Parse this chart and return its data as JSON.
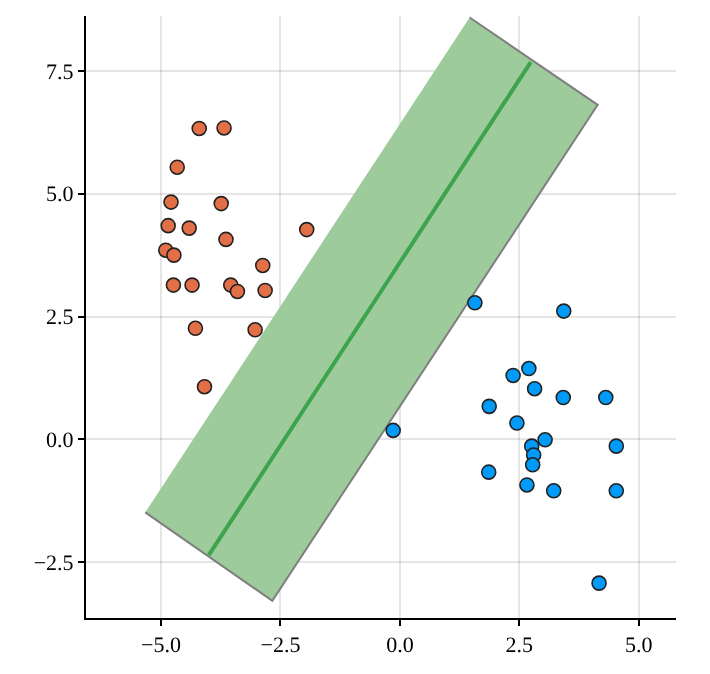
{
  "chart_data": {
    "type": "scatter",
    "marker": "circle",
    "grid": true,
    "xlim": [
      -6.57,
      5.78
    ],
    "ylim": [
      -3.64,
      8.62
    ],
    "xticks": [
      {
        "value": -5,
        "label": "−5.0"
      },
      {
        "value": -2.5,
        "label": "−2.5"
      },
      {
        "value": 0,
        "label": "0.0"
      },
      {
        "value": 2.5,
        "label": "2.5"
      },
      {
        "value": 5,
        "label": "5.0"
      }
    ],
    "yticks": [
      {
        "value": -2.5,
        "label": "−2.5"
      },
      {
        "value": 0,
        "label": "0.0"
      },
      {
        "value": 2.5,
        "label": "2.5"
      },
      {
        "value": 5,
        "label": "5.0"
      },
      {
        "value": 7.5,
        "label": "7.5"
      }
    ],
    "series": [
      {
        "type": "area",
        "marker": "none",
        "color": "#9ecb9c",
        "x": [
          1.46,
          4.14,
          -2.67,
          -5.33
        ],
        "values": [
          8.59,
          6.81,
          -3.29,
          -1.49
        ]
      },
      {
        "type": "line",
        "marker": "none",
        "color": "#3da44d",
        "x": [
          -4.0,
          0.0,
          2.74
        ],
        "values": [
          -2.36,
          3.6,
          7.68
        ]
      },
      {
        "color": "#e26f46",
        "x": [
          -4.2,
          -3.68,
          -4.66,
          -4.79,
          -3.74,
          -4.85,
          -4.41,
          -3.64,
          -1.95,
          -4.9,
          -4.73,
          -2.87,
          -4.74,
          -4.35,
          -3.54,
          -3.4,
          -2.82,
          -4.28,
          -3.03,
          -4.09
        ],
        "values": [
          6.33,
          6.34,
          5.54,
          4.83,
          4.8,
          4.35,
          4.3,
          4.07,
          4.27,
          3.85,
          3.75,
          3.54,
          3.14,
          3.14,
          3.14,
          3.01,
          3.03,
          2.26,
          2.23,
          1.07
        ]
      },
      {
        "color": "#009af9",
        "x": [
          1.57,
          3.43,
          2.7,
          2.37,
          2.82,
          3.42,
          4.31,
          1.87,
          2.45,
          -0.14,
          3.04,
          2.76,
          4.53,
          2.8,
          2.78,
          1.86,
          2.66,
          3.22,
          4.53,
          4.17
        ],
        "values": [
          2.78,
          2.61,
          1.44,
          1.3,
          1.03,
          0.85,
          0.85,
          0.67,
          0.33,
          0.18,
          -0.01,
          -0.14,
          -0.14,
          -0.32,
          -0.52,
          -0.67,
          -0.93,
          -1.05,
          -1.05,
          -2.93
        ]
      }
    ]
  }
}
